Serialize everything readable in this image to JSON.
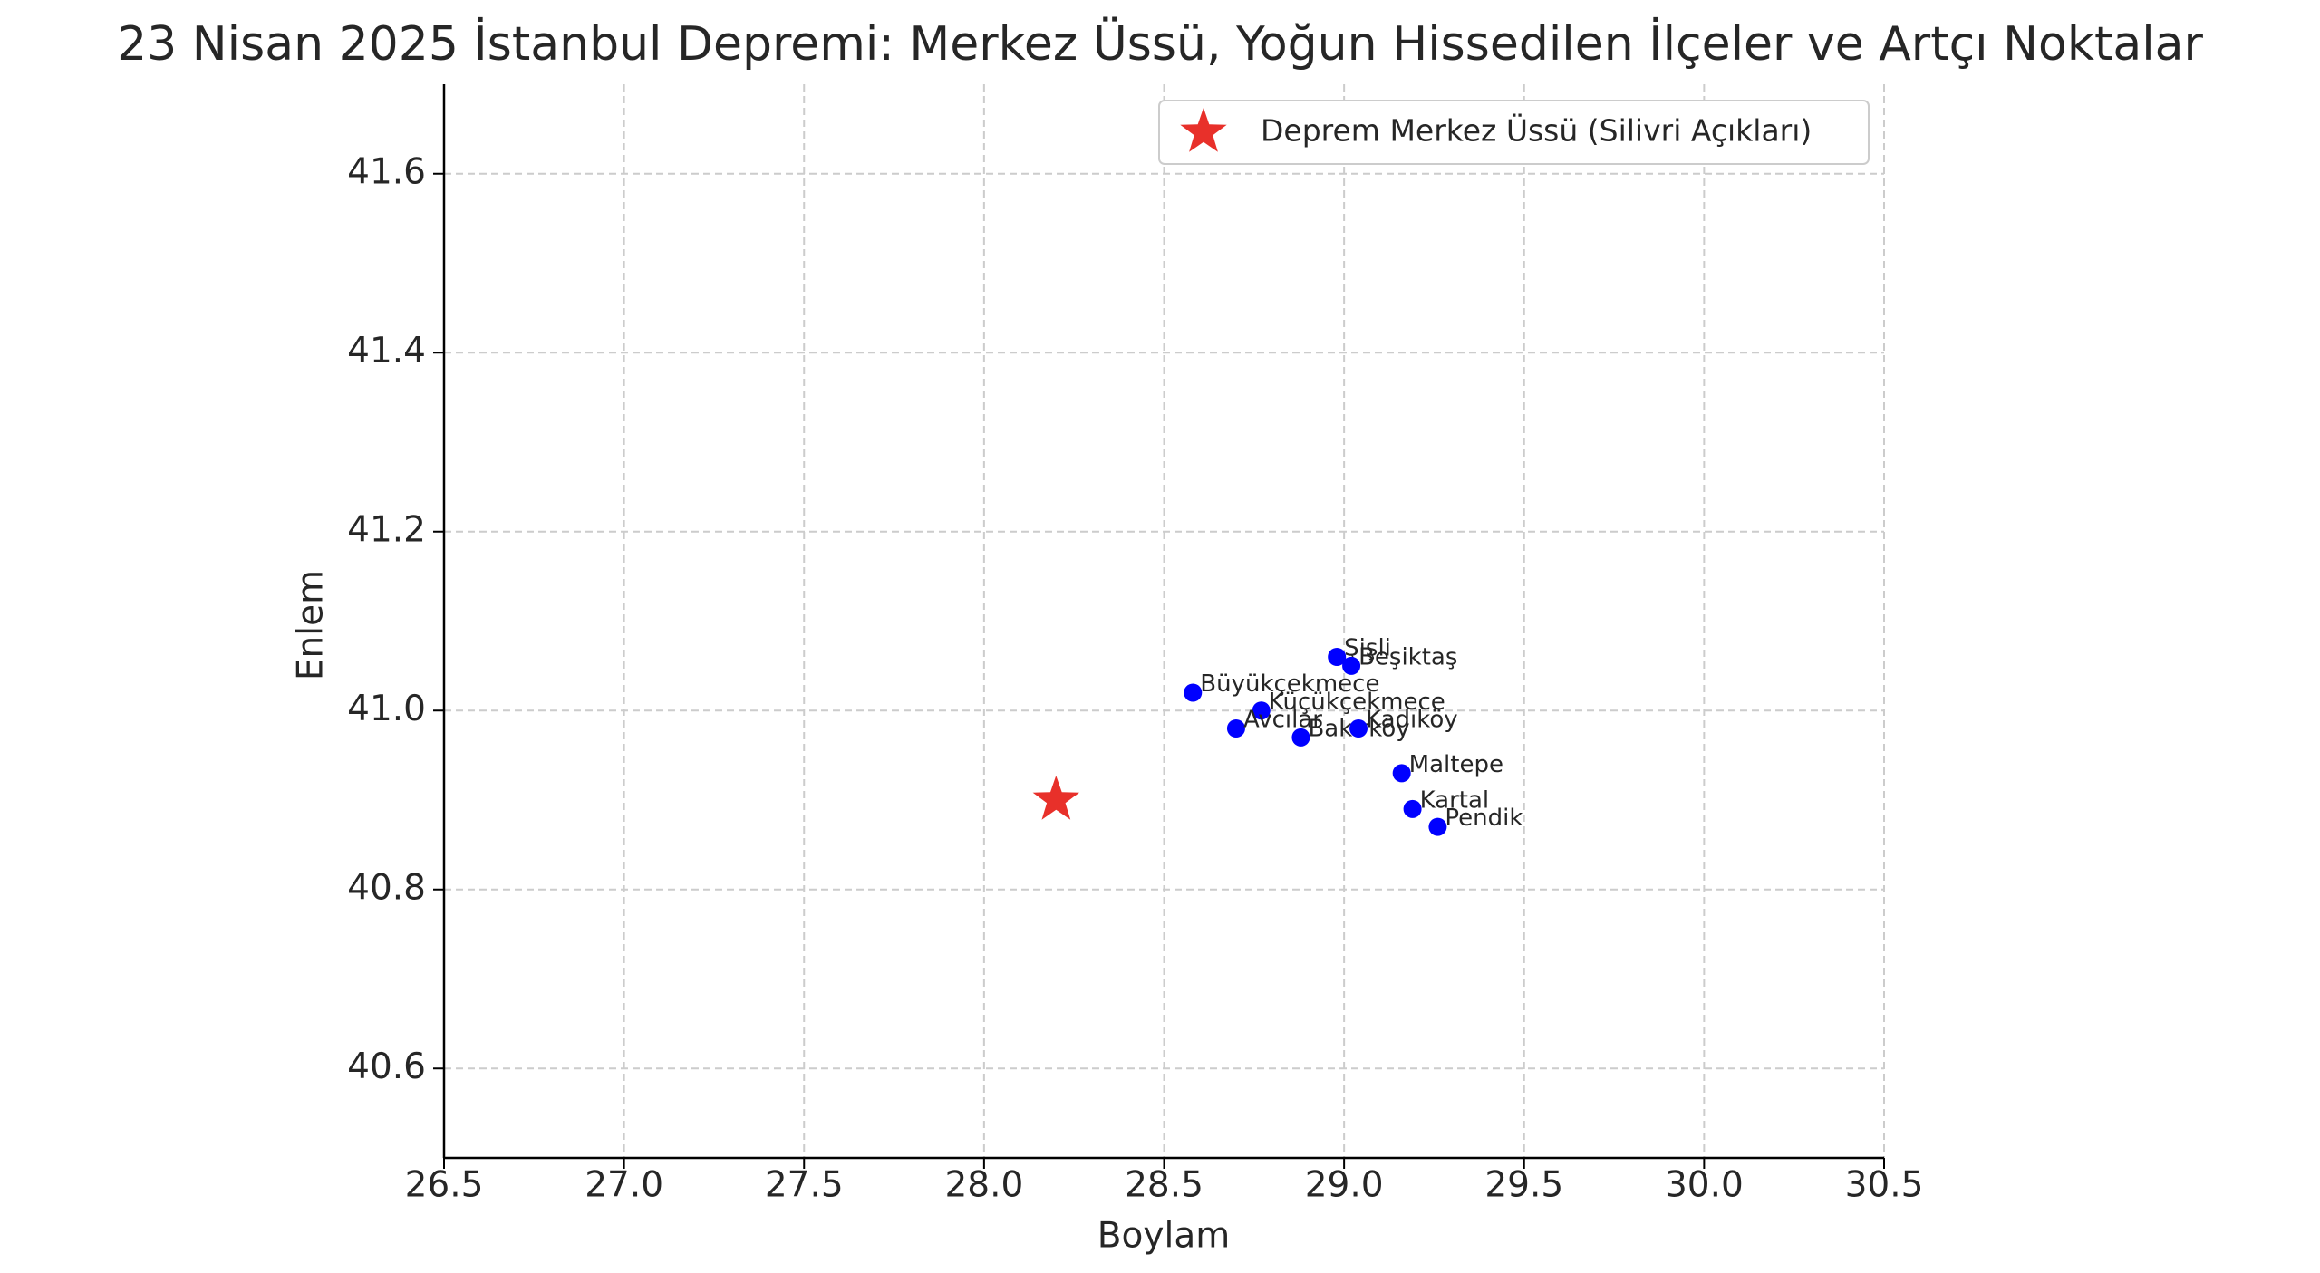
{
  "chart_data": {
    "type": "scatter",
    "title": "23 Nisan 2025 İstanbul Depremi: Merkez Üssü, Yoğun Hissedilen İlçeler ve Artçı Noktalar",
    "x_label": "Boylam",
    "y_label": "Enlem",
    "xlim": [
      26.5,
      30.5
    ],
    "ylim": [
      40.5,
      41.7
    ],
    "xticks": [
      26.5,
      {
        "value": 27,
        "label": "27.0"
      },
      27.5,
      {
        "value": 28,
        "label": "28.0"
      },
      28.5,
      {
        "value": 29,
        "label": "29.0"
      },
      29.5,
      {
        "value": 30,
        "label": "30.0"
      },
      30.5
    ],
    "yticks": [
      40.6,
      40.8,
      {
        "value": 41,
        "label": "41.0"
      },
      41.2,
      41.4,
      41.6
    ],
    "grid": true,
    "legend": "upper right",
    "series": [
      {
        "name": "Deprem Merkez Üssü (Silivri Açıkları)",
        "color": "#e8302a",
        "marker": "star",
        "x": [
          28.2
        ],
        "y": [
          40.9
        ]
      },
      {
        "color": "#0000ff",
        "marker": "circle",
        "x": [
          28.98,
          29.02,
          28.58,
          28.77,
          28.7,
          28.88,
          29.04,
          29.16,
          29.19,
          29.26
        ],
        "y": [
          41.06,
          41.05,
          41.02,
          41.0,
          40.98,
          40.97,
          40.98,
          40.93,
          40.89,
          40.87
        ],
        "labels": [
          "Şişli",
          "Beşiktaş",
          "Büyükçekmece",
          "Küçükçekmece",
          "Avcılar",
          "Bakırköy",
          "Kadıköy",
          "Maltepe",
          "Kartal",
          "Pendik"
        ]
      }
    ]
  }
}
